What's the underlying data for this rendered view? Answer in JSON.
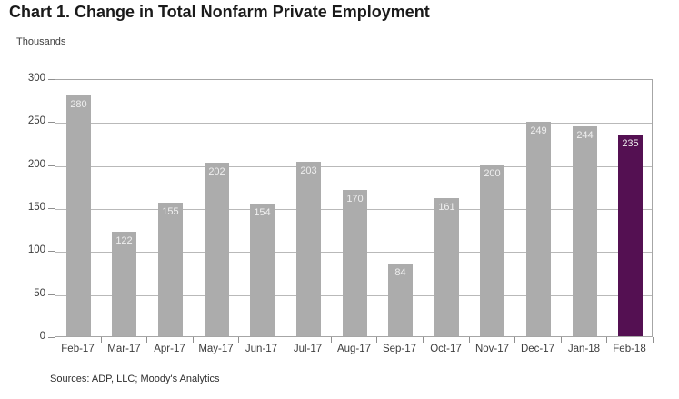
{
  "chart": {
    "title": "Chart 1. Change in Total Nonfarm Private Employment",
    "units_label": "Thousands",
    "source": "Sources: ADP, LLC; Moody's Analytics"
  },
  "chart_data": {
    "type": "bar",
    "title": "Chart 1. Change in Total Nonfarm Private Employment",
    "xlabel": "",
    "ylabel": "Thousands",
    "categories": [
      "Feb-17",
      "Mar-17",
      "Apr-17",
      "May-17",
      "Jun-17",
      "Jul-17",
      "Aug-17",
      "Sep-17",
      "Oct-17",
      "Nov-17",
      "Dec-17",
      "Jan-18",
      "Feb-18"
    ],
    "values": [
      280,
      122,
      155,
      202,
      154,
      203,
      170,
      84,
      161,
      200,
      249,
      244,
      235
    ],
    "ylim": [
      0,
      300
    ],
    "ytick_step": 50,
    "grid": true,
    "legend": "none",
    "bar_color": "#acacac",
    "highlight_color": "#541052",
    "highlight_index": 12,
    "value_label_color": "#efefef"
  }
}
